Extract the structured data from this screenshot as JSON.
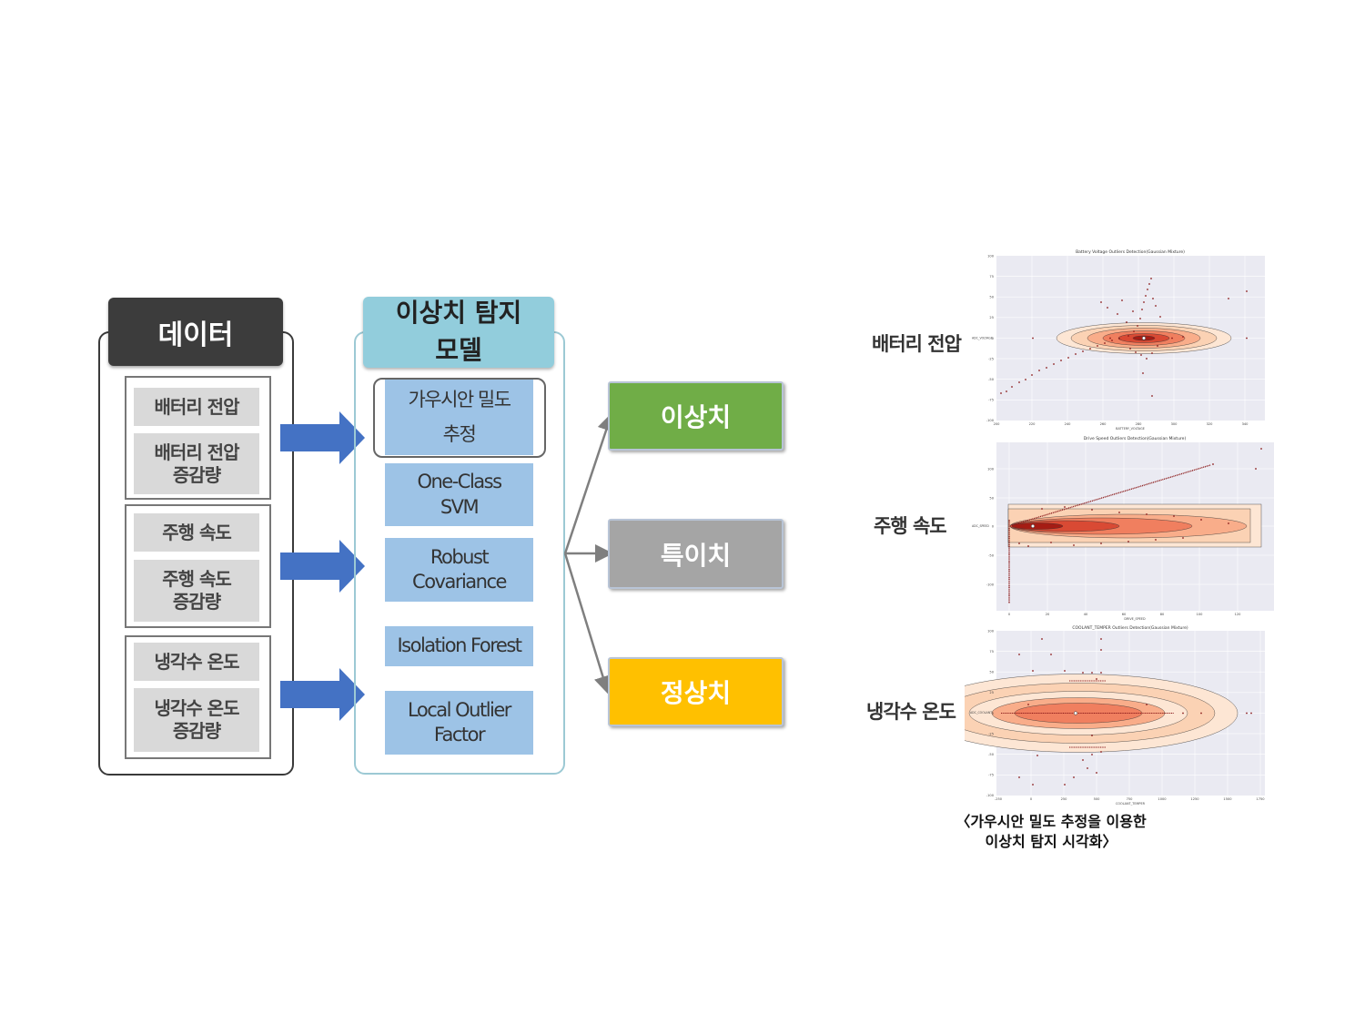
{
  "data_column": {
    "header": "데이터",
    "groups": [
      {
        "items": [
          "배터리 전압",
          "배터리 전압\n증감량"
        ]
      },
      {
        "items": [
          "주행 속도",
          "주행 속도\n증감량"
        ]
      },
      {
        "items": [
          "냉각수 온도",
          "냉각수 온도\n증감량"
        ]
      }
    ]
  },
  "model_column": {
    "header": "이상치 탐지\n모델",
    "models": [
      "가우시안 밀도\n추정",
      "One-Class\nSVM",
      "Robust\nCovariance",
      "Isolation Forest",
      "Local Outlier\nFactor"
    ]
  },
  "outputs": [
    {
      "label": "이상치",
      "color": "#70ad47"
    },
    {
      "label": "특이치",
      "color": "#a5a5a5"
    },
    {
      "label": "정상치",
      "color": "#ffc000"
    }
  ],
  "colors": {
    "arrow": "#4472c4",
    "connector": "#7f7f7f"
  },
  "plots": [
    {
      "label": "배터리 전압",
      "title": "Battery Voltage Outliers Detection(Gaussian Mixture)",
      "xlabel": "BATTERY_VOLTAGE",
      "ylabel": "ADC_VOLTAGE",
      "xticks": [
        "200",
        "220",
        "240",
        "260",
        "280",
        "300",
        "320",
        "340"
      ],
      "yticks": [
        "100",
        "75",
        "50",
        "25",
        "0",
        "-25",
        "-50",
        "-75",
        "-100"
      ]
    },
    {
      "label": "주행 속도",
      "title": "Drive Speed Outliers Detection(Gaussian Mixture)",
      "xlabel": "DRIVE_SPEED",
      "ylabel": "ADC_SPEED",
      "xticks": [
        "0",
        "20",
        "40",
        "60",
        "80",
        "100",
        "120"
      ],
      "yticks": [
        "100",
        "50",
        "0",
        "-50",
        "-100"
      ]
    },
    {
      "label": "냉각수 온도",
      "title": "COOLANT_TEMPER Outliers Detection(Gaussian Mixture)",
      "xlabel": "COOLANT_TEMPER",
      "ylabel": "ADC_COOLANT",
      "xticks": [
        "-250",
        "0",
        "250",
        "500",
        "750",
        "1000",
        "1250",
        "1500",
        "1750"
      ],
      "yticks": [
        "100",
        "75",
        "50",
        "25",
        "0",
        "-25",
        "-50",
        "-75",
        "-100"
      ]
    }
  ],
  "caption": "〈가우시안 밀도 추정을 이용한\n이상치 탐지 시각화〉"
}
